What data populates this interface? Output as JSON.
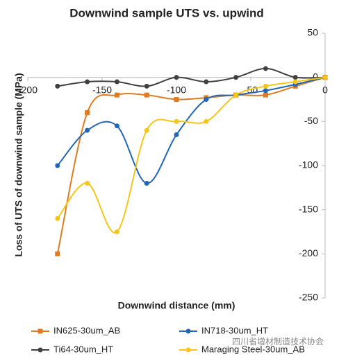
{
  "chart_data": {
    "type": "line",
    "title": "Downwind sample UTS vs. upwind",
    "x_label": "Downwind distance (mm)",
    "y_label": "Loss of UTS of downwind sample (MPa)",
    "x": [
      -180,
      -160,
      -140,
      -120,
      -100,
      -80,
      -60,
      -40,
      -20,
      0
    ],
    "xlim": [
      -200,
      0
    ],
    "xticks": [
      -200,
      -150,
      -100,
      -50,
      0
    ],
    "ylim": [
      -250,
      50
    ],
    "yticks": [
      50,
      0,
      -50,
      -100,
      -150,
      -200,
      -250
    ],
    "smooth": true,
    "series": [
      {
        "name": "IN625-30um_AB",
        "color": "#e07b21",
        "marker": "square",
        "values": [
          -200,
          -40,
          -20,
          -20,
          -25,
          -23,
          -20,
          -20,
          -10,
          0
        ]
      },
      {
        "name": "IN718-30um_HT",
        "color": "#2166b8",
        "marker": "circle",
        "values": [
          -100,
          -60,
          -55,
          -120,
          -65,
          -25,
          -20,
          -15,
          -8,
          0
        ]
      },
      {
        "name": "Ti64-30um_HT",
        "color": "#404040",
        "marker": "circle",
        "values": [
          -10,
          -5,
          -5,
          -10,
          0,
          -5,
          0,
          10,
          0,
          0
        ]
      },
      {
        "name": "Maraging Steel-30um_AB",
        "color": "#f5c518",
        "marker": "circle",
        "values": [
          -160,
          -120,
          -175,
          -60,
          -50,
          -50,
          -20,
          -10,
          -5,
          0
        ]
      }
    ],
    "watermark": "四川省增材制造技术协会"
  }
}
